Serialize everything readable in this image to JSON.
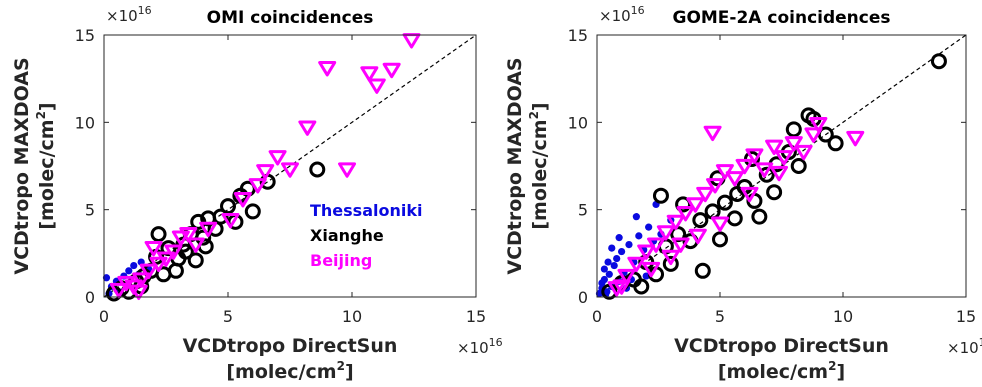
{
  "chart_data": [
    {
      "type": "scatter",
      "title": "OMI coincidences",
      "xlabel": "VCDtropo DirectSun",
      "xunit": "[molec/cm",
      "ylabel": "VCDtropo MAXDOAS",
      "yunit": "[molec/cm",
      "unit_sup": "2",
      "unit_close": "]",
      "xlim": [
        0,
        15
      ],
      "ylim": [
        0,
        15
      ],
      "xticks": [
        "0",
        "5",
        "10",
        "15"
      ],
      "yticks": [
        "0",
        "5",
        "10",
        "15"
      ],
      "x_multiplier": "×10",
      "y_multiplier": "×10",
      "exponent": "16",
      "one_to_one_line": true,
      "series": [
        {
          "name": "Thessaloniki",
          "color": "#0a0ae0",
          "marker": "dot",
          "points": [
            [
              0.1,
              1.1
            ],
            [
              0.3,
              0.6
            ],
            [
              0.5,
              0.9
            ],
            [
              0.8,
              1.2
            ],
            [
              1.0,
              1.5
            ],
            [
              1.2,
              1.8
            ],
            [
              1.5,
              2.0
            ],
            [
              0.6,
              0.3
            ],
            [
              0.9,
              0.7
            ],
            [
              1.4,
              1.3
            ],
            [
              0.2,
              0.2
            ],
            [
              1.8,
              1.6
            ]
          ]
        },
        {
          "name": "Xianghe",
          "color": "#000000",
          "marker": "circle",
          "points": [
            [
              0.4,
              0.2
            ],
            [
              0.7,
              0.5
            ],
            [
              1.0,
              0.3
            ],
            [
              1.3,
              0.9
            ],
            [
              1.6,
              1.2
            ],
            [
              1.9,
              1.5
            ],
            [
              2.1,
              2.3
            ],
            [
              2.2,
              3.6
            ],
            [
              2.6,
              2.8
            ],
            [
              3.0,
              2.2
            ],
            [
              3.2,
              3.0
            ],
            [
              3.5,
              3.6
            ],
            [
              3.8,
              4.3
            ],
            [
              4.0,
              3.4
            ],
            [
              4.2,
              4.5
            ],
            [
              4.5,
              3.9
            ],
            [
              4.7,
              4.6
            ],
            [
              5.0,
              5.2
            ],
            [
              5.5,
              5.8
            ],
            [
              5.8,
              6.2
            ],
            [
              6.0,
              4.9
            ],
            [
              6.6,
              6.6
            ],
            [
              3.3,
              2.6
            ],
            [
              2.9,
              1.5
            ],
            [
              1.5,
              0.6
            ],
            [
              2.4,
              1.3
            ],
            [
              4.1,
              2.9
            ],
            [
              3.7,
              2.1
            ],
            [
              8.6,
              7.3
            ],
            [
              5.3,
              4.3
            ]
          ]
        },
        {
          "name": "Beijing",
          "color": "#ff00ff",
          "marker": "triangle-down",
          "points": [
            [
              0.6,
              0.4
            ],
            [
              0.9,
              0.8
            ],
            [
              1.2,
              0.6
            ],
            [
              1.5,
              1.0
            ],
            [
              1.8,
              1.5
            ],
            [
              2.2,
              1.9
            ],
            [
              2.5,
              2.2
            ],
            [
              2.8,
              2.6
            ],
            [
              3.1,
              3.4
            ],
            [
              3.4,
              3.6
            ],
            [
              3.7,
              3.0
            ],
            [
              4.2,
              3.9
            ],
            [
              5.1,
              4.4
            ],
            [
              5.6,
              5.6
            ],
            [
              6.2,
              6.4
            ],
            [
              6.5,
              7.2
            ],
            [
              7.0,
              8.0
            ],
            [
              7.5,
              7.3
            ],
            [
              8.2,
              9.7
            ],
            [
              9.0,
              13.1
            ],
            [
              9.8,
              7.3
            ],
            [
              10.7,
              12.8
            ],
            [
              11.0,
              12.1
            ],
            [
              11.6,
              13.0
            ],
            [
              12.4,
              14.7
            ],
            [
              2.0,
              2.8
            ],
            [
              1.4,
              0.3
            ]
          ]
        }
      ]
    },
    {
      "type": "scatter",
      "title": "GOME-2A coincidences",
      "xlabel": "VCDtropo DirectSun",
      "xunit": "[molec/cm",
      "ylabel": "VCDtropo MAXDOAS",
      "yunit": "[molec/cm",
      "unit_sup": "2",
      "unit_close": "]",
      "xlim": [
        0,
        15
      ],
      "ylim": [
        0,
        15
      ],
      "xticks": [
        "0",
        "5",
        "10",
        "15"
      ],
      "yticks": [
        "0",
        "5",
        "10",
        "15"
      ],
      "x_multiplier": "×10",
      "y_multiplier": "×10",
      "exponent": "16",
      "one_to_one_line": true,
      "series": [
        {
          "name": "Thessaloniki",
          "color": "#0a0ae0",
          "marker": "dot",
          "points": [
            [
              0.1,
              0.2
            ],
            [
              0.2,
              0.5
            ],
            [
              0.3,
              1.0
            ],
            [
              0.4,
              0.3
            ],
            [
              0.5,
              1.3
            ],
            [
              0.6,
              0.6
            ],
            [
              0.7,
              1.8
            ],
            [
              0.8,
              2.2
            ],
            [
              0.9,
              0.9
            ],
            [
              1.0,
              2.6
            ],
            [
              1.1,
              1.4
            ],
            [
              1.3,
              3.0
            ],
            [
              1.5,
              2.0
            ],
            [
              1.7,
              3.5
            ],
            [
              1.9,
              2.7
            ],
            [
              2.1,
              4.0
            ],
            [
              2.3,
              3.2
            ],
            [
              2.6,
              3.6
            ],
            [
              0.2,
              0.8
            ],
            [
              0.35,
              0.15
            ],
            [
              0.45,
              2.0
            ],
            [
              1.2,
              0.5
            ],
            [
              0.9,
              3.4
            ],
            [
              1.6,
              4.6
            ],
            [
              2.4,
              5.3
            ],
            [
              3.0,
              4.4
            ],
            [
              0.6,
              2.8
            ],
            [
              1.4,
              1.0
            ],
            [
              0.3,
              1.6
            ],
            [
              2.0,
              1.2
            ]
          ]
        },
        {
          "name": "Xianghe",
          "color": "#000000",
          "marker": "circle",
          "points": [
            [
              0.5,
              0.3
            ],
            [
              1.0,
              0.8
            ],
            [
              1.5,
              1.0
            ],
            [
              2.0,
              2.0
            ],
            [
              2.4,
              1.3
            ],
            [
              2.8,
              2.9
            ],
            [
              3.3,
              3.6
            ],
            [
              3.8,
              3.2
            ],
            [
              4.2,
              4.4
            ],
            [
              4.7,
              4.9
            ],
            [
              5.2,
              5.4
            ],
            [
              5.6,
              4.5
            ],
            [
              6.0,
              6.3
            ],
            [
              6.4,
              5.5
            ],
            [
              6.9,
              7.0
            ],
            [
              7.3,
              7.6
            ],
            [
              7.8,
              8.3
            ],
            [
              8.2,
              7.5
            ],
            [
              8.6,
              10.4
            ],
            [
              8.8,
              10.2
            ],
            [
              9.3,
              9.3
            ],
            [
              9.7,
              8.8
            ],
            [
              13.9,
              13.5
            ],
            [
              4.3,
              1.5
            ],
            [
              2.6,
              5.8
            ],
            [
              3.5,
              5.3
            ],
            [
              6.6,
              4.6
            ],
            [
              7.2,
              6.0
            ],
            [
              5.0,
              3.3
            ],
            [
              3.0,
              1.9
            ],
            [
              4.9,
              6.8
            ],
            [
              6.3,
              7.9
            ],
            [
              1.8,
              0.6
            ],
            [
              5.7,
              5.9
            ],
            [
              8.0,
              9.6
            ]
          ]
        },
        {
          "name": "Beijing",
          "color": "#ff00ff",
          "marker": "triangle-down",
          "points": [
            [
              0.8,
              0.5
            ],
            [
              1.2,
              1.2
            ],
            [
              1.6,
              1.9
            ],
            [
              2.0,
              2.6
            ],
            [
              2.4,
              3.0
            ],
            [
              2.8,
              3.7
            ],
            [
              3.2,
              4.3
            ],
            [
              3.6,
              4.8
            ],
            [
              4.0,
              5.3
            ],
            [
              4.4,
              5.9
            ],
            [
              4.8,
              6.4
            ],
            [
              5.2,
              7.2
            ],
            [
              5.6,
              6.8
            ],
            [
              6.0,
              7.5
            ],
            [
              6.4,
              8.1
            ],
            [
              6.8,
              7.3
            ],
            [
              7.2,
              8.6
            ],
            [
              7.6,
              8.0
            ],
            [
              8.0,
              8.8
            ],
            [
              8.4,
              8.3
            ],
            [
              8.8,
              9.3
            ],
            [
              9.0,
              9.9
            ],
            [
              10.5,
              9.1
            ],
            [
              4.7,
              9.4
            ],
            [
              3.4,
              3.0
            ],
            [
              2.2,
              1.6
            ],
            [
              4.1,
              3.5
            ],
            [
              5.0,
              4.2
            ],
            [
              6.2,
              5.9
            ],
            [
              7.4,
              7.1
            ],
            [
              1.0,
              0.6
            ],
            [
              3.0,
              2.3
            ]
          ]
        }
      ]
    }
  ]
}
